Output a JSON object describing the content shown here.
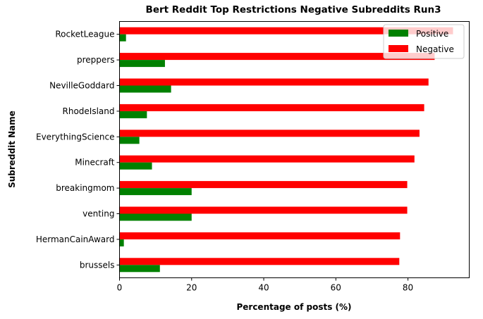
{
  "chart_data": {
    "type": "bar",
    "orientation": "horizontal",
    "title": "Bert Reddit Top Restrictions Negative Subreddits Run3",
    "xlabel": "Percentage of posts (%)",
    "ylabel": "Subreddit Name",
    "xlim": [
      0,
      97
    ],
    "xticks": [
      0,
      20,
      40,
      60,
      80
    ],
    "categories": [
      "RocketLeague",
      "preppers",
      "NevilleGoddard",
      "RhodeIsland",
      "EverythingScience",
      "Minecraft",
      "breakingmom",
      "venting",
      "HermanCainAward",
      "brussels"
    ],
    "series": [
      {
        "name": "Positive",
        "color": "#008000",
        "values": [
          1.8,
          12.6,
          14.3,
          7.6,
          5.5,
          9.0,
          20.0,
          20.0,
          1.2,
          11.2
        ]
      },
      {
        "name": "Negative",
        "color": "#ff0000",
        "values": [
          92.5,
          87.4,
          85.7,
          84.5,
          83.2,
          81.8,
          79.8,
          79.8,
          77.8,
          77.6
        ]
      }
    ],
    "legend_position": "top-right",
    "grid": false
  }
}
